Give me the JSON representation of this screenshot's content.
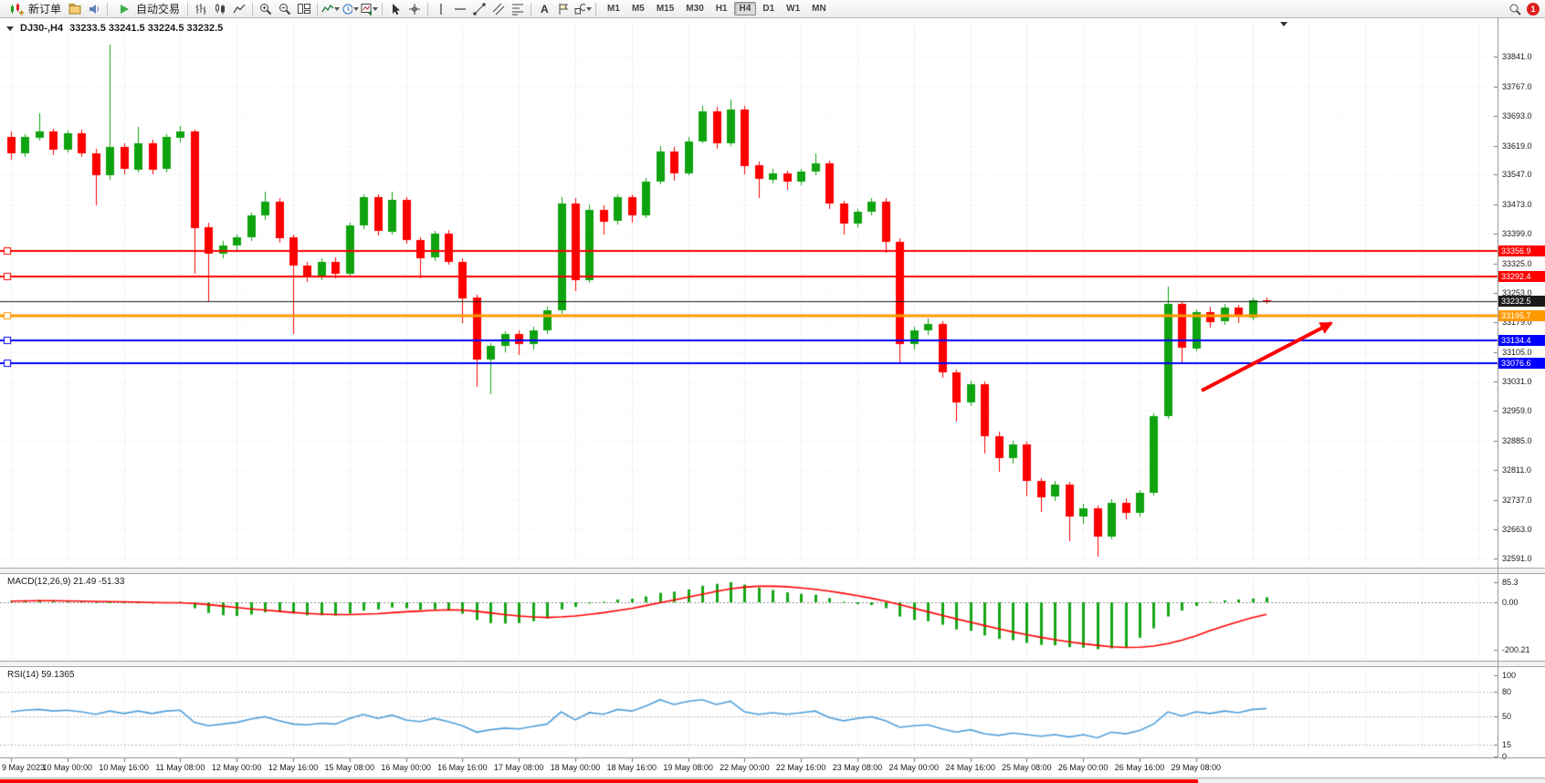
{
  "toolbar": {
    "new_order_label": "新订单",
    "auto_trading_label": "自动交易",
    "timeframes": [
      "M1",
      "M5",
      "M15",
      "M30",
      "H1",
      "H4",
      "D1",
      "W1",
      "MN"
    ],
    "active_timeframe": "H4",
    "notification_badge": "1"
  },
  "chart_data": {
    "type": "candlestick",
    "symbol": "DJ30-",
    "timeframe": "H4",
    "symbol_period": "DJ30-,H4",
    "ohlc_text": "33233.5 33241.5 33224.5 33232.5",
    "current": {
      "open": 33233.5,
      "high": 33241.5,
      "low": 33224.5,
      "close": 33232.5
    },
    "price_axis": [
      "33841.0",
      "33767.0",
      "33693.0",
      "33619.0",
      "33547.0",
      "33473.0",
      "33399.0",
      "33325.0",
      "33253.0",
      "33179.0",
      "33105.0",
      "33031.0",
      "32959.0",
      "32885.0",
      "32811.0",
      "32737.0",
      "32663.0",
      "32591.0"
    ],
    "time_axis": [
      "9 May 2023",
      "10 May 00:00",
      "10 May 16:00",
      "11 May 08:00",
      "12 May 00:00",
      "12 May 16:00",
      "15 May 08:00",
      "16 May 00:00",
      "16 May 16:00",
      "17 May 08:00",
      "18 May 00:00",
      "18 May 16:00",
      "19 May 08:00",
      "22 May 00:00",
      "22 May 16:00",
      "23 May 08:00",
      "24 May 00:00",
      "24 May 16:00",
      "25 May 08:00",
      "26 May 00:00",
      "26 May 16:00",
      "29 May 08:00"
    ],
    "hlines": [
      {
        "price": 33356.9,
        "label": "33356.9",
        "color": "#ff0000",
        "width": 2,
        "kind": "resistance"
      },
      {
        "price": 33292.4,
        "label": "33292.4",
        "color": "#ff0000",
        "width": 2,
        "kind": "resistance"
      },
      {
        "price": 33232.5,
        "label": "33232.5",
        "color": "#1a1a1a",
        "width": 1,
        "kind": "bid"
      },
      {
        "price": 33195.7,
        "label": "33195.7",
        "color": "#ff9900",
        "width": 3,
        "kind": "pivot"
      },
      {
        "price": 33134.4,
        "label": "33134.4",
        "color": "#0000ff",
        "width": 2,
        "kind": "support"
      },
      {
        "price": 33076.6,
        "label": "33076.6",
        "color": "#0000ff",
        "width": 2,
        "kind": "support"
      }
    ],
    "candles": [
      [
        33640,
        33655,
        33585,
        33600
      ],
      [
        33600,
        33648,
        33592,
        33640
      ],
      [
        33640,
        33700,
        33632,
        33655
      ],
      [
        33655,
        33662,
        33595,
        33610
      ],
      [
        33610,
        33658,
        33602,
        33650
      ],
      [
        33650,
        33660,
        33590,
        33600
      ],
      [
        33600,
        33612,
        33470,
        33545
      ],
      [
        33545,
        33870,
        33535,
        33615
      ],
      [
        33615,
        33625,
        33548,
        33560
      ],
      [
        33560,
        33665,
        33552,
        33625
      ],
      [
        33625,
        33635,
        33548,
        33560
      ],
      [
        33560,
        33648,
        33552,
        33640
      ],
      [
        33640,
        33668,
        33628,
        33655
      ],
      [
        33655,
        33660,
        33300,
        33415
      ],
      [
        33415,
        33428,
        33230,
        33350
      ],
      [
        33350,
        33382,
        33338,
        33370
      ],
      [
        33370,
        33398,
        33355,
        33390
      ],
      [
        33390,
        33452,
        33382,
        33445
      ],
      [
        33445,
        33505,
        33435,
        33480
      ],
      [
        33480,
        33488,
        33378,
        33390
      ],
      [
        33390,
        33398,
        33150,
        33320
      ],
      [
        33320,
        33330,
        33280,
        33295
      ],
      [
        33295,
        33338,
        33285,
        33330
      ],
      [
        33330,
        33340,
        33288,
        33300
      ],
      [
        33300,
        33428,
        33292,
        33420
      ],
      [
        33420,
        33498,
        33412,
        33490
      ],
      [
        33490,
        33498,
        33395,
        33405
      ],
      [
        33405,
        33505,
        33398,
        33485
      ],
      [
        33485,
        33492,
        33375,
        33385
      ],
      [
        33385,
        33392,
        33288,
        33340
      ],
      [
        33340,
        33408,
        33332,
        33400
      ],
      [
        33400,
        33410,
        33322,
        33330
      ],
      [
        33330,
        33338,
        33178,
        33240
      ],
      [
        33240,
        33248,
        33018,
        33085
      ],
      [
        33085,
        33128,
        33000,
        33120
      ],
      [
        33120,
        33158,
        33105,
        33150
      ],
      [
        33150,
        33160,
        33098,
        33125
      ],
      [
        33125,
        33168,
        33112,
        33160
      ],
      [
        33160,
        33218,
        33150,
        33210
      ],
      [
        33210,
        33490,
        33200,
        33475
      ],
      [
        33475,
        33488,
        33258,
        33285
      ],
      [
        33285,
        33472,
        33278,
        33460
      ],
      [
        33460,
        33470,
        33398,
        33430
      ],
      [
        33430,
        33498,
        33422,
        33490
      ],
      [
        33490,
        33498,
        33428,
        33445
      ],
      [
        33445,
        33538,
        33438,
        33530
      ],
      [
        33530,
        33618,
        33522,
        33605
      ],
      [
        33605,
        33615,
        33532,
        33550
      ],
      [
        33550,
        33640,
        33545,
        33630
      ],
      [
        33630,
        33718,
        33625,
        33705
      ],
      [
        33705,
        33715,
        33612,
        33625
      ],
      [
        33625,
        33735,
        33618,
        33710
      ],
      [
        33710,
        33718,
        33548,
        33570
      ],
      [
        33570,
        33580,
        33488,
        33535
      ],
      [
        33535,
        33562,
        33525,
        33550
      ],
      [
        33550,
        33558,
        33510,
        33530
      ],
      [
        33530,
        33562,
        33520,
        33555
      ],
      [
        33555,
        33600,
        33545,
        33575
      ],
      [
        33575,
        33582,
        33462,
        33475
      ],
      [
        33475,
        33482,
        33398,
        33425
      ],
      [
        33425,
        33462,
        33415,
        33455
      ],
      [
        33455,
        33488,
        33445,
        33480
      ],
      [
        33480,
        33488,
        33352,
        33380
      ],
      [
        33380,
        33388,
        33078,
        33125
      ],
      [
        33125,
        33168,
        33112,
        33160
      ],
      [
        33160,
        33188,
        33148,
        33175
      ],
      [
        33175,
        33182,
        33042,
        33055
      ],
      [
        33055,
        33062,
        32932,
        32980
      ],
      [
        32980,
        33035,
        32970,
        33025
      ],
      [
        33025,
        33032,
        32852,
        32895
      ],
      [
        32895,
        32908,
        32808,
        32840
      ],
      [
        32840,
        32885,
        32828,
        32875
      ],
      [
        32875,
        32882,
        32745,
        32785
      ],
      [
        32785,
        32792,
        32708,
        32745
      ],
      [
        32745,
        32785,
        32735,
        32775
      ],
      [
        32775,
        32782,
        32635,
        32695
      ],
      [
        32695,
        32728,
        32678,
        32715
      ],
      [
        32715,
        32722,
        32596,
        32645
      ],
      [
        32645,
        32738,
        32638,
        32730
      ],
      [
        32730,
        32740,
        32688,
        32705
      ],
      [
        32705,
        32762,
        32696,
        32755
      ],
      [
        32755,
        32952,
        32748,
        32945
      ],
      [
        32945,
        33268,
        32938,
        33225
      ],
      [
        33225,
        33232,
        33075,
        33115
      ],
      [
        33115,
        33212,
        33108,
        33205
      ],
      [
        33205,
        33218,
        33165,
        33180
      ],
      [
        33180,
        33225,
        33172,
        33215
      ],
      [
        33215,
        33222,
        33178,
        33192
      ],
      [
        33192,
        33242,
        33185,
        33235
      ],
      [
        33233.5,
        33241.5,
        33224.5,
        33232.5
      ]
    ],
    "macd": {
      "label": "MACD(12,26,9) 21.49 -51.33",
      "params": "12,26,9",
      "value": 21.49,
      "signal_value": -51.33,
      "axis": [
        "85.3",
        "0.00",
        "-200.21"
      ],
      "histogram": [
        5,
        8,
        10,
        8,
        6,
        4,
        -2,
        0,
        -4,
        0,
        -5,
        -2,
        2,
        -25,
        -45,
        -55,
        -58,
        -52,
        -42,
        -40,
        -48,
        -55,
        -55,
        -56,
        -48,
        -35,
        -30,
        -22,
        -25,
        -32,
        -30,
        -34,
        -48,
        -75,
        -88,
        -90,
        -88,
        -80,
        -68,
        -30,
        -20,
        -5,
        2,
        12,
        15,
        25,
        40,
        45,
        55,
        70,
        78,
        85,
        75,
        62,
        52,
        42,
        36,
        32,
        18,
        2,
        -8,
        -12,
        -25,
        -60,
        -75,
        -80,
        -95,
        -115,
        -120,
        -140,
        -155,
        -160,
        -172,
        -180,
        -182,
        -190,
        -192,
        -198,
        -195,
        -192,
        -150,
        -110,
        -60,
        -35,
        -15,
        2,
        8,
        12,
        16,
        21.49
      ],
      "signal": [
        5,
        6,
        7,
        7,
        6,
        5,
        4,
        3,
        2,
        1,
        -1,
        -2,
        -2,
        -5,
        -10,
        -16,
        -22,
        -28,
        -33,
        -38,
        -43,
        -47,
        -50,
        -52,
        -52,
        -50,
        -48,
        -44,
        -40,
        -37,
        -34,
        -32,
        -33,
        -38,
        -45,
        -52,
        -58,
        -62,
        -64,
        -62,
        -58,
        -51,
        -44,
        -35,
        -26,
        -14,
        -2,
        10,
        22,
        34,
        46,
        57,
        64,
        68,
        68,
        66,
        61,
        55,
        47,
        38,
        28,
        17,
        5,
        -10,
        -25,
        -40,
        -55,
        -70,
        -84,
        -98,
        -112,
        -125,
        -137,
        -148,
        -158,
        -167,
        -175,
        -182,
        -188,
        -191,
        -190,
        -185,
        -175,
        -160,
        -142,
        -120,
        -100,
        -82,
        -65,
        -51.33
      ]
    },
    "rsi": {
      "label": "RSI(14) 59.1365",
      "period": 14,
      "value": 59.1365,
      "axis": [
        "100",
        "80",
        "50",
        "15",
        "0"
      ],
      "levels": [
        80,
        50,
        15
      ],
      "values": [
        55,
        57,
        58,
        56,
        57,
        55,
        52,
        56,
        53,
        56,
        53,
        56,
        57,
        42,
        38,
        40,
        42,
        46,
        49,
        44,
        40,
        39,
        41,
        40,
        47,
        52,
        47,
        51,
        45,
        43,
        47,
        43,
        38,
        30,
        33,
        35,
        34,
        37,
        40,
        55,
        45,
        54,
        52,
        58,
        56,
        62,
        70,
        64,
        68,
        70,
        64,
        68,
        55,
        52,
        54,
        52,
        54,
        56,
        48,
        44,
        47,
        49,
        44,
        36,
        38,
        39,
        34,
        30,
        33,
        28,
        26,
        29,
        27,
        25,
        27,
        24,
        27,
        23,
        30,
        28,
        32,
        40,
        55,
        50,
        55,
        53,
        56,
        54,
        58,
        59.14
      ]
    },
    "colors": {
      "up": "#10a310",
      "down": "#ff0000",
      "macd_hist": "#16a616",
      "macd_signal": "#ff0000",
      "rsi_line": "#4f9ed9",
      "grid_v": "#d6d6d6",
      "grid_h": "#e9e9e9",
      "arrow": "#ff0000"
    }
  }
}
